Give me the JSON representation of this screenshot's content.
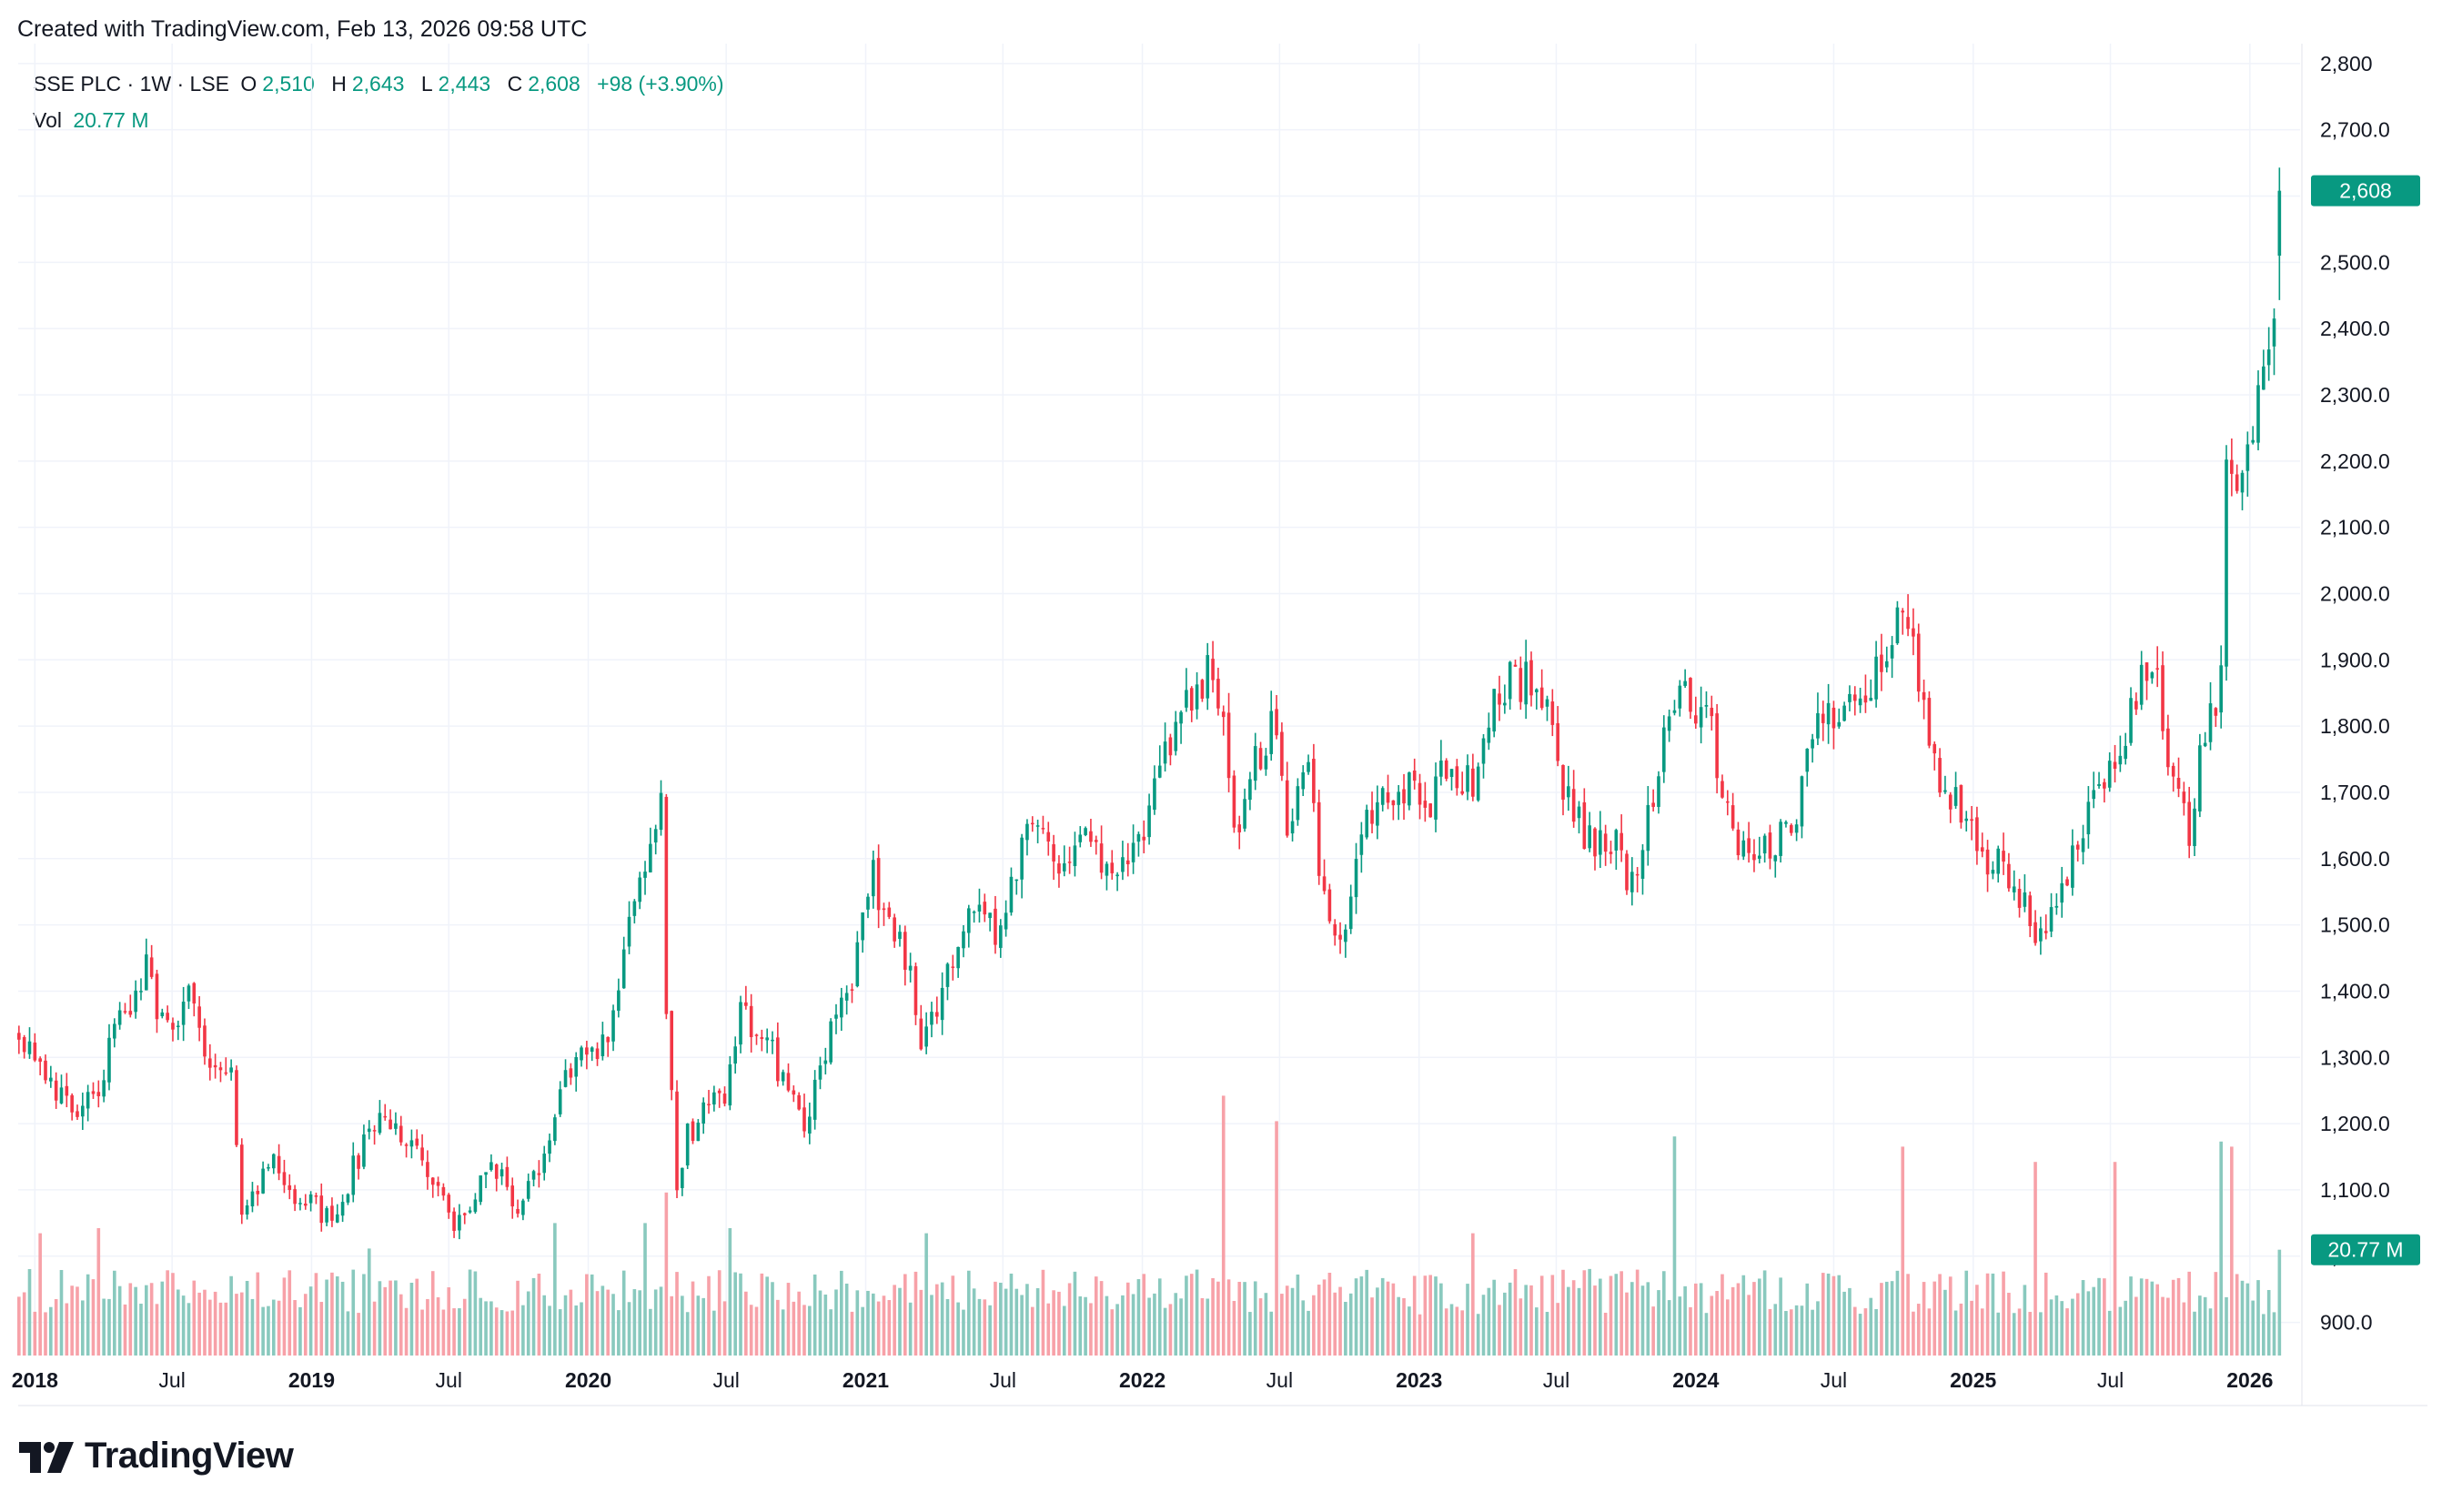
{
  "header": {
    "created_text": "Created with TradingView.com, Feb 13, 2026 09:58 UTC"
  },
  "legend": {
    "symbol": "SSE PLC · 1W · LSE",
    "o_label": "O",
    "o_value": "2,510",
    "h_label": "H",
    "h_value": "2,643",
    "l_label": "L",
    "l_value": "2,443",
    "c_label": "C",
    "c_value": "2,608",
    "change": "+98 (+3.90%)",
    "vol_label": "Vol",
    "vol_value": "20.77 M"
  },
  "price_badge": "2,608",
  "volume_badge": "20.77 M",
  "logo_text": "TradingView",
  "colors": {
    "up": "#089981",
    "down": "#F23645",
    "up_vol": "#89C9BE",
    "down_vol": "#F7A1A8",
    "grid": "#F0F3FA",
    "text": "#131722"
  },
  "chart_data": {
    "type": "candlestick",
    "interval": "1W",
    "y_axis": {
      "range": [
        850,
        2830
      ],
      "ticks": [
        "900.0",
        "1,000.0",
        "1,100.0",
        "1,200.0",
        "1,300.0",
        "1,400.0",
        "1,500.0",
        "1,600.0",
        "1,700.0",
        "1,800.0",
        "1,900.0",
        "2,000.0",
        "2,100.0",
        "2,200.0",
        "2,300.0",
        "2,400.0",
        "2,500.0",
        "2,600.0",
        "2,700.0",
        "2,800"
      ],
      "tick_values": [
        900,
        1000,
        1100,
        1200,
        1300,
        1400,
        1500,
        1600,
        1700,
        1800,
        1900,
        2000,
        2100,
        2200,
        2300,
        2400,
        2500,
        2600,
        2700,
        2800
      ]
    },
    "x_axis": {
      "labels": [
        {
          "text": "2018",
          "date": "2018-01-01",
          "bold": true
        },
        {
          "text": "Jul",
          "date": "2018-07-01",
          "bold": false
        },
        {
          "text": "2019",
          "date": "2019-01-01",
          "bold": true
        },
        {
          "text": "Jul",
          "date": "2019-07-01",
          "bold": false
        },
        {
          "text": "2020",
          "date": "2020-01-01",
          "bold": true
        },
        {
          "text": "Jul",
          "date": "2020-07-01",
          "bold": false
        },
        {
          "text": "2021",
          "date": "2021-01-01",
          "bold": true
        },
        {
          "text": "Jul",
          "date": "2021-07-01",
          "bold": false
        },
        {
          "text": "2022",
          "date": "2022-01-01",
          "bold": true
        },
        {
          "text": "Jul",
          "date": "2022-07-01",
          "bold": false
        },
        {
          "text": "2023",
          "date": "2023-01-01",
          "bold": true
        },
        {
          "text": "Jul",
          "date": "2023-07-01",
          "bold": false
        },
        {
          "text": "2024",
          "date": "2024-01-01",
          "bold": true
        },
        {
          "text": "Jul",
          "date": "2024-07-01",
          "bold": false
        },
        {
          "text": "2025",
          "date": "2025-01-01",
          "bold": true
        },
        {
          "text": "Jul",
          "date": "2025-07-01",
          "bold": false
        },
        {
          "text": "2026",
          "date": "2026-01-01",
          "bold": true
        }
      ],
      "range": [
        "2017-12-10",
        "2026-03-01"
      ]
    },
    "price_anchors": [
      [
        "2017-12-11",
        1340
      ],
      [
        "2018-01-15",
        1290
      ],
      [
        "2018-02-19",
        1200
      ],
      [
        "2018-03-19",
        1240
      ],
      [
        "2018-04-23",
        1350
      ],
      [
        "2018-05-28",
        1430
      ],
      [
        "2018-06-18",
        1350
      ],
      [
        "2018-07-23",
        1390
      ],
      [
        "2018-08-20",
        1280
      ],
      [
        "2018-09-17",
        1260
      ],
      [
        "2018-10-01",
        1080
      ],
      [
        "2018-11-12",
        1140
      ],
      [
        "2018-12-17",
        1090
      ],
      [
        "2019-01-28",
        1050
      ],
      [
        "2019-03-04",
        1150
      ],
      [
        "2019-04-08",
        1220
      ],
      [
        "2019-05-13",
        1170
      ],
      [
        "2019-06-10",
        1120
      ],
      [
        "2019-07-08",
        1030
      ],
      [
        "2019-08-12",
        1120
      ],
      [
        "2019-09-09",
        1120
      ],
      [
        "2019-10-07",
        1070
      ],
      [
        "2019-11-04",
        1160
      ],
      [
        "2019-12-16",
        1310
      ],
      [
        "2020-01-27",
        1330
      ],
      [
        "2020-02-24",
        1500
      ],
      [
        "2020-03-23",
        1630
      ],
      [
        "2020-04-06",
        1670
      ],
      [
        "2020-04-13",
        1380
      ],
      [
        "2020-04-27",
        1080
      ],
      [
        "2020-05-11",
        1180
      ],
      [
        "2020-06-01",
        1230
      ],
      [
        "2020-06-29",
        1220
      ],
      [
        "2020-07-20",
        1380
      ],
      [
        "2020-08-17",
        1330
      ],
      [
        "2020-09-21",
        1260
      ],
      [
        "2020-10-12",
        1190
      ],
      [
        "2020-11-09",
        1320
      ],
      [
        "2020-12-14",
        1400
      ],
      [
        "2021-01-11",
        1580
      ],
      [
        "2021-01-25",
        1520
      ],
      [
        "2021-02-22",
        1460
      ],
      [
        "2021-03-15",
        1320
      ],
      [
        "2021-04-12",
        1410
      ],
      [
        "2021-05-17",
        1540
      ],
      [
        "2021-06-07",
        1520
      ],
      [
        "2021-06-21",
        1460
      ],
      [
        "2021-07-12",
        1560
      ],
      [
        "2021-08-09",
        1650
      ],
      [
        "2021-09-13",
        1600
      ],
      [
        "2021-10-11",
        1640
      ],
      [
        "2021-11-15",
        1580
      ],
      [
        "2021-12-13",
        1590
      ],
      [
        "2022-01-10",
        1660
      ],
      [
        "2022-02-07",
        1780
      ],
      [
        "2022-03-07",
        1860
      ],
      [
        "2022-04-04",
        1890
      ],
      [
        "2022-04-18",
        1780
      ],
      [
        "2022-05-02",
        1640
      ],
      [
        "2022-05-30",
        1740
      ],
      [
        "2022-06-20",
        1800
      ],
      [
        "2022-07-11",
        1660
      ],
      [
        "2022-08-08",
        1720
      ],
      [
        "2022-09-05",
        1480
      ],
      [
        "2022-09-26",
        1470
      ],
      [
        "2022-10-17",
        1640
      ],
      [
        "2022-11-14",
        1700
      ],
      [
        "2022-12-19",
        1710
      ],
      [
        "2023-01-16",
        1690
      ],
      [
        "2023-02-13",
        1740
      ],
      [
        "2023-03-13",
        1710
      ],
      [
        "2023-04-10",
        1840
      ],
      [
        "2023-05-08",
        1870
      ],
      [
        "2023-06-05",
        1870
      ],
      [
        "2023-06-26",
        1780
      ],
      [
        "2023-07-24",
        1660
      ],
      [
        "2023-08-21",
        1630
      ],
      [
        "2023-09-18",
        1620
      ],
      [
        "2023-10-09",
        1560
      ],
      [
        "2023-11-06",
        1700
      ],
      [
        "2023-12-11",
        1860
      ],
      [
        "2024-01-15",
        1820
      ],
      [
        "2024-02-12",
        1660
      ],
      [
        "2024-03-11",
        1580
      ],
      [
        "2024-04-08",
        1610
      ],
      [
        "2024-05-13",
        1680
      ],
      [
        "2024-06-10",
        1800
      ],
      [
        "2024-07-15",
        1840
      ],
      [
        "2024-08-12",
        1870
      ],
      [
        "2024-09-09",
        1900
      ],
      [
        "2024-09-30",
        1980
      ],
      [
        "2024-10-21",
        1870
      ],
      [
        "2024-11-18",
        1720
      ],
      [
        "2024-12-16",
        1660
      ],
      [
        "2025-01-13",
        1590
      ],
      [
        "2025-02-10",
        1590
      ],
      [
        "2025-03-10",
        1520
      ],
      [
        "2025-04-07",
        1470
      ],
      [
        "2025-05-05",
        1580
      ],
      [
        "2025-06-09",
        1680
      ],
      [
        "2025-07-14",
        1780
      ],
      [
        "2025-08-11",
        1870
      ],
      [
        "2025-09-01",
        1870
      ],
      [
        "2025-09-22",
        1720
      ],
      [
        "2025-10-13",
        1630
      ],
      [
        "2025-11-03",
        1790
      ],
      [
        "2025-11-24",
        1860
      ],
      [
        "2025-12-01",
        2220
      ],
      [
        "2025-12-22",
        2150
      ],
      [
        "2026-01-12",
        2300
      ],
      [
        "2026-01-26",
        2410
      ],
      [
        "2026-02-09",
        2510
      ]
    ],
    "last_candle": {
      "date": "2026-02-09",
      "open": 2510,
      "high": 2643,
      "low": 2443,
      "close": 2608,
      "volume_m": 20.77
    },
    "volume_pane": {
      "label": "Vol",
      "unit": "M",
      "last": 20.77,
      "spikes": [
        [
          "2018-01-08",
          24
        ],
        [
          "2018-03-26",
          25
        ],
        [
          "2019-03-18",
          21
        ],
        [
          "2019-11-18",
          26
        ],
        [
          "2020-03-16",
          26
        ],
        [
          "2020-04-13",
          32
        ],
        [
          "2020-07-06",
          25
        ],
        [
          "2021-03-22",
          24
        ],
        [
          "2022-04-18",
          51
        ],
        [
          "2022-06-27",
          46
        ],
        [
          "2023-03-13",
          24
        ],
        [
          "2023-12-04",
          43
        ],
        [
          "2024-09-30",
          41
        ],
        [
          "2025-03-24",
          38
        ],
        [
          "2025-07-07",
          38
        ],
        [
          "2025-11-24",
          42
        ],
        [
          "2025-12-08",
          41
        ]
      ]
    }
  }
}
